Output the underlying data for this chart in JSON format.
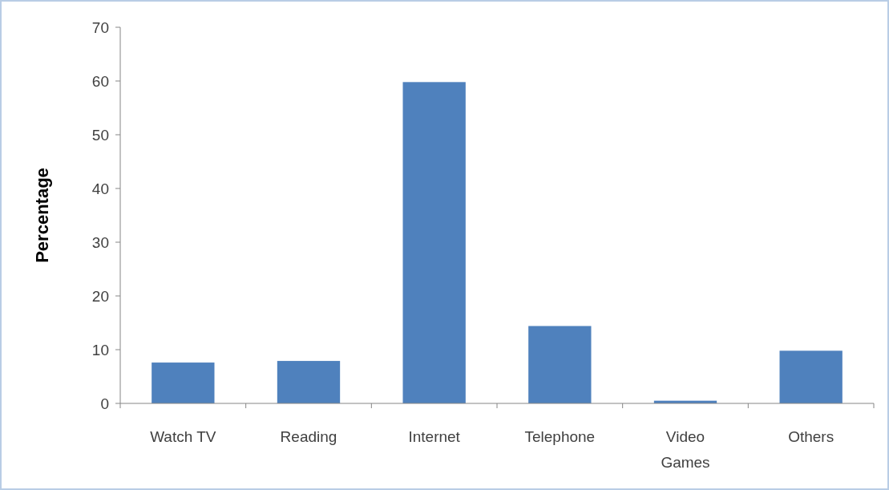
{
  "chart_data": {
    "type": "bar",
    "ylabel": "Percentage",
    "categories": [
      "Watch TV",
      "Reading",
      "Internet",
      "Telephone",
      "Video Games",
      "Others"
    ],
    "values": [
      7.6,
      7.9,
      59.8,
      14.4,
      0.5,
      9.8
    ],
    "color": "#4f81bd",
    "ylim": [
      0,
      70
    ],
    "yticks": [
      0,
      10,
      20,
      30,
      40,
      50,
      60,
      70
    ]
  }
}
